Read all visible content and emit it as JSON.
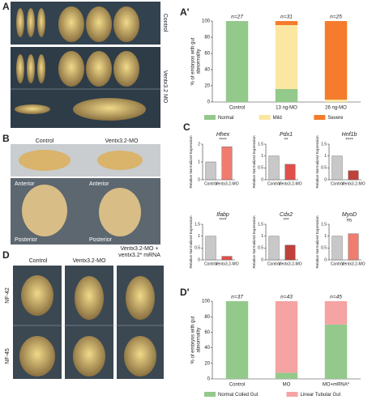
{
  "panels": {
    "a": {
      "letter": "A",
      "control": "Control",
      "mo": "Ventx3.2 MO"
    },
    "b": {
      "letter": "B",
      "control": "Control",
      "mo": "Ventx3.2-MO",
      "anterior": "Anterior",
      "posterior": "Posterior"
    },
    "c": {
      "letter": "C"
    },
    "d": {
      "letter": "D",
      "control": "Control",
      "mo": "Ventx3.2-MO",
      "rescue": [
        "Ventx3.2-MO +",
        "ventx3.2* mRNA"
      ],
      "stage1": "NF-42",
      "stage2": "NF-45"
    }
  },
  "chart_data": [
    {
      "type": "stacked-bar",
      "letter": "A'",
      "ylabel": [
        "% of embryos with gut",
        "abnormality"
      ],
      "categories": [
        "Control",
        "13 ng-MO",
        "26 ng-MO"
      ],
      "n_labels": [
        "n=27",
        "n=31",
        "n=25"
      ],
      "series": [
        {
          "name": "Normal",
          "color": "#93c98b",
          "values": [
            100,
            16,
            0
          ]
        },
        {
          "name": "Mild",
          "color": "#fbe7a1",
          "values": [
            0,
            79,
            3
          ]
        },
        {
          "name": "Severe",
          "color": "#f47c2c",
          "values": [
            0,
            5,
            97
          ]
        }
      ],
      "ylim": [
        0,
        100
      ],
      "yticks": [
        0,
        20,
        40,
        60,
        80,
        100
      ]
    },
    {
      "type": "bar",
      "gene": "Hhex",
      "significance": "****",
      "ylabel": "Relative Normalized Expression",
      "categories": [
        "Control",
        "Ventx3.2-MO"
      ],
      "values": [
        1,
        1.85
      ],
      "colors": [
        "#c8c8c8",
        "#f07c70"
      ],
      "ylim": [
        0,
        2
      ],
      "yticks": [
        0,
        1,
        2
      ]
    },
    {
      "type": "bar",
      "gene": "Pdx1",
      "significance": "**",
      "ylabel": "Relative Normalized Expression",
      "categories": [
        "Control",
        "Ventx3.2-MO"
      ],
      "values": [
        1,
        0.65
      ],
      "colors": [
        "#c8c8c8",
        "#e0504a"
      ],
      "ylim": [
        0,
        1.5
      ],
      "yticks": [
        0,
        0.5,
        1,
        1.5
      ]
    },
    {
      "type": "bar",
      "gene": "Hnf1b",
      "significance": "****",
      "ylabel": "Relative Normalized Expression",
      "categories": [
        "Control",
        "Ventx3.2-MO"
      ],
      "values": [
        1,
        0.38
      ],
      "colors": [
        "#c8c8c8",
        "#c0403a"
      ],
      "ylim": [
        0,
        1.5
      ],
      "yticks": [
        0,
        0.5,
        1,
        1.5
      ]
    },
    {
      "type": "bar",
      "gene": "Ifabp",
      "significance": "****",
      "ylabel": "Relative Normalized Expression",
      "categories": [
        "Control",
        "Ventx3.2-MO"
      ],
      "values": [
        1,
        0.15
      ],
      "colors": [
        "#c8c8c8",
        "#e0504a"
      ],
      "ylim": [
        0,
        1.5
      ],
      "yticks": [
        0,
        0.5,
        1,
        1.5
      ]
    },
    {
      "type": "bar",
      "gene": "Cdx2",
      "significance": "***",
      "ylabel": "Relative Normalized Expression",
      "categories": [
        "Control",
        "Ventx3.2-MO"
      ],
      "values": [
        1,
        0.62
      ],
      "colors": [
        "#c8c8c8",
        "#c0403a"
      ],
      "ylim": [
        0,
        1.5
      ],
      "yticks": [
        0,
        0.5,
        1,
        1.5
      ]
    },
    {
      "type": "bar",
      "gene": "MyoD",
      "significance": "ns",
      "ylabel": "Relative Normalized Expression",
      "categories": [
        "Control",
        "Ventx3.2-MO"
      ],
      "values": [
        1,
        1.1
      ],
      "colors": [
        "#c8c8c8",
        "#f07c70"
      ],
      "ylim": [
        0,
        1.5
      ],
      "yticks": [
        0,
        0.5,
        1,
        1.5
      ]
    },
    {
      "type": "stacked-bar",
      "letter": "D'",
      "ylabel": [
        "% of embryos with gut",
        "abnormality"
      ],
      "categories": [
        "Control",
        "MO",
        "MO+mRNA*"
      ],
      "n_labels": [
        "n=37",
        "n=43",
        "n=45"
      ],
      "series": [
        {
          "name": "Normal Coiled Gut",
          "color": "#93c98b",
          "values": [
            100,
            8,
            70
          ]
        },
        {
          "name": "Linear Tubular Gut",
          "color": "#f5a3a3",
          "values": [
            0,
            92,
            30
          ]
        }
      ],
      "ylim": [
        0,
        100
      ],
      "yticks": [
        0,
        20,
        40,
        60,
        80,
        100
      ]
    }
  ]
}
